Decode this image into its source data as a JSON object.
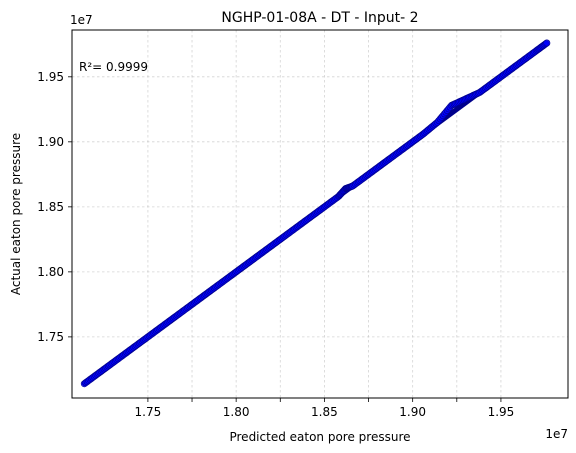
{
  "chart_data": {
    "type": "scatter",
    "title": "NGHP-01-08A - DT - Input- 2",
    "xlabel": "Predicted eaton pore pressure",
    "ylabel": "Actual eaton pore pressure",
    "x_offset_text": "1e7",
    "y_offset_text": "1e7",
    "xlim": [
      17.07,
      19.88
    ],
    "ylim": [
      17.03,
      19.86
    ],
    "xticks": [
      17.5,
      17.75,
      18.0,
      18.25,
      18.5,
      18.75,
      19.0,
      19.25,
      19.5
    ],
    "xtick_labels": [
      "1.75",
      "1.80",
      "1.85",
      "1.90",
      "1.95"
    ],
    "xtick_label_values": [
      17.5,
      18.0,
      18.5,
      19.0,
      19.5
    ],
    "yticks": [
      17.5,
      18.0,
      18.5,
      19.0,
      19.5
    ],
    "ytick_labels": [
      "1.75",
      "1.80",
      "1.85",
      "1.90",
      "1.95"
    ],
    "grid": true,
    "annotation": "R²= 0.9999",
    "series": [
      {
        "color": "#0000ff",
        "edge_color": "#00008b",
        "x": [
          17.14,
          17.22,
          17.3,
          17.38,
          17.46,
          17.54,
          17.62,
          17.7,
          17.78,
          17.86,
          17.94,
          18.02,
          18.1,
          18.18,
          18.26,
          18.34,
          18.42,
          18.5,
          18.58,
          18.62,
          18.66,
          18.74,
          18.82,
          18.9,
          18.98,
          19.06,
          19.14,
          19.22,
          19.3,
          19.38,
          19.46,
          19.54,
          19.62,
          19.7,
          19.76
        ],
        "y": [
          17.14,
          17.22,
          17.3,
          17.38,
          17.46,
          17.54,
          17.62,
          17.7,
          17.78,
          17.86,
          17.94,
          18.02,
          18.1,
          18.18,
          18.26,
          18.34,
          18.42,
          18.5,
          18.58,
          18.64,
          18.66,
          18.74,
          18.82,
          18.9,
          18.98,
          19.06,
          19.15,
          19.28,
          19.33,
          19.38,
          19.46,
          19.54,
          19.62,
          19.7,
          19.76
        ]
      }
    ]
  }
}
